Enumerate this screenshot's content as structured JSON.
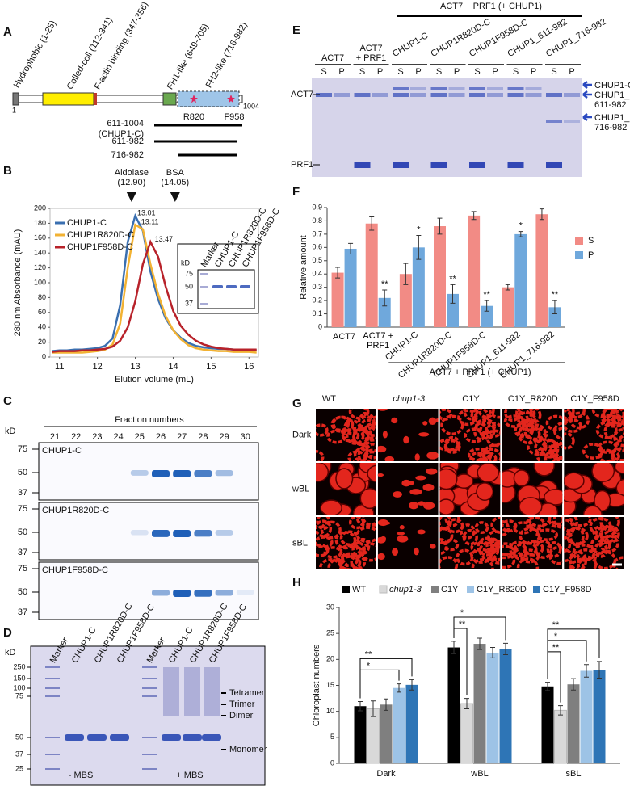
{
  "panel_labels": [
    "A",
    "B",
    "C",
    "D",
    "E",
    "F",
    "G",
    "H"
  ],
  "panel_a": {
    "domains": [
      "Hydrophobic (1-25)",
      "Coiled-coil (112-341)",
      "F-actin binding (347-356)",
      "FH1-like (649-705)",
      "FH2-like (716-982)"
    ],
    "start": "1",
    "end": "1004",
    "mutations": [
      "R820",
      "F958"
    ],
    "constructs": [
      "611-1004",
      "(CHUP1-C)",
      "611-982",
      "716-982"
    ]
  },
  "chart_data": [
    {
      "type": "line",
      "xlabel": "Elution volume (mL)",
      "ylabel": "280 nm Absorbance (mAU)",
      "x": [
        10.8,
        11.0,
        11.2,
        11.4,
        11.6,
        11.8,
        12.0,
        12.2,
        12.4,
        12.6,
        12.8,
        13.0,
        13.2,
        13.4,
        13.6,
        13.8,
        14.0,
        14.2,
        14.4,
        14.6,
        14.8,
        15.0,
        15.2,
        15.4,
        15.6,
        15.8,
        16.0,
        16.2
      ],
      "series": [
        {
          "name": "CHUP1-C",
          "color": "#3a6fb0",
          "values": [
            8,
            9,
            9,
            10,
            10,
            11,
            12,
            15,
            25,
            70,
            155,
            190,
            170,
            115,
            78,
            52,
            36,
            26,
            19,
            15,
            13,
            12,
            11,
            11,
            10,
            10,
            10,
            9
          ]
        },
        {
          "name": "CHUP1R820D-C",
          "color": "#f2b233",
          "values": [
            6,
            6,
            6,
            6,
            6,
            7,
            8,
            10,
            17,
            45,
            120,
            178,
            172,
            125,
            85,
            55,
            36,
            24,
            16,
            12,
            10,
            9,
            8,
            8,
            7,
            7,
            7,
            6
          ]
        },
        {
          "name": "CHUP1F958D-C",
          "color": "#b8222a",
          "values": [
            7,
            8,
            8,
            8,
            9,
            9,
            10,
            11,
            14,
            22,
            40,
            75,
            125,
            155,
            135,
            95,
            62,
            42,
            30,
            22,
            17,
            14,
            12,
            11,
            10,
            10,
            10,
            10
          ]
        }
      ],
      "peaks": [
        13.01,
        13.11,
        13.47
      ],
      "standards": [
        {
          "name": "Aldolase",
          "value": 12.9,
          "label": "(12.90)"
        },
        {
          "name": "BSA",
          "value": 14.05,
          "label": "(14.05)"
        }
      ],
      "xlim": [
        10.75,
        16.25
      ],
      "xticks": [
        11,
        12,
        13,
        14,
        15,
        16
      ],
      "ylim": [
        0,
        200
      ],
      "yticks": [
        0,
        20,
        40,
        60,
        80,
        100,
        120,
        140,
        160,
        180,
        200
      ],
      "inset": {
        "unit": "kD",
        "markers": [
          75,
          50,
          37
        ],
        "lanes": [
          "Marker",
          "CHUP1-C",
          "CHUP1R820D-C",
          "CHUP1F958D-C"
        ]
      }
    },
    {
      "type": "bar",
      "ylabel": "Relative amount",
      "categories": [
        "ACT7",
        "ACT7 + PRF1",
        "CHUP1-C",
        "CHUP1R820D-C",
        "CHUP1F958D-C",
        "CHUP1_611-982",
        "CHUP1_716-982"
      ],
      "series": [
        {
          "name": "S",
          "color": "#f28b85",
          "values": [
            0.41,
            0.78,
            0.4,
            0.76,
            0.84,
            0.3,
            0.85
          ],
          "errors": [
            0.04,
            0.05,
            0.08,
            0.06,
            0.03,
            0.02,
            0.04
          ]
        },
        {
          "name": "P",
          "color": "#6fa8dc",
          "values": [
            0.59,
            0.22,
            0.6,
            0.25,
            0.16,
            0.7,
            0.15
          ],
          "errors": [
            0.04,
            0.06,
            0.09,
            0.07,
            0.04,
            0.02,
            0.05
          ],
          "annotations": [
            null,
            "**",
            "*",
            "**",
            "**",
            "*",
            "**"
          ]
        }
      ],
      "ylim": [
        0,
        0.9
      ],
      "yticks": [
        0,
        0.1,
        0.2,
        0.3,
        0.4,
        0.5,
        0.6,
        0.7,
        0.8,
        0.9
      ],
      "bracket": "ACT7 + PRF1 (+ CHUP1)",
      "legend": "right"
    },
    {
      "type": "bar",
      "ylabel": "Chloroplast numbers",
      "categories": [
        "Dark",
        "wBL",
        "sBL"
      ],
      "series": [
        {
          "name": "WT",
          "color": "#000000",
          "values": [
            11,
            22.3,
            14.8
          ],
          "errors": [
            0.9,
            1.2,
            0.8
          ]
        },
        {
          "name": "chup1-3",
          "color": "#d9d9d9",
          "values": [
            10.5,
            11.5,
            10.2
          ],
          "errors": [
            1.5,
            1.0,
            0.9
          ]
        },
        {
          "name": "C1Y",
          "color": "#7f7f7f",
          "values": [
            11.3,
            23,
            15.2
          ],
          "errors": [
            1.1,
            1.1,
            1.1
          ]
        },
        {
          "name": "C1Y_R820D",
          "color": "#9dc3e6",
          "values": [
            14.5,
            21.3,
            17.8
          ],
          "errors": [
            0.8,
            1.0,
            1.2
          ]
        },
        {
          "name": "C1Y_F958D",
          "color": "#2e75b6",
          "values": [
            15.1,
            22,
            18
          ],
          "errors": [
            1.0,
            1.1,
            1.6
          ]
        }
      ],
      "ylim": [
        0,
        30
      ],
      "yticks": [
        0,
        5,
        10,
        15,
        20,
        25,
        30
      ],
      "significance": [
        "*",
        "**",
        "**",
        "*",
        "**",
        "*",
        "**"
      ],
      "legend": "top"
    }
  ],
  "panel_c": {
    "title": "Fraction numbers",
    "unit": "kD",
    "fractions": [
      21,
      22,
      23,
      24,
      25,
      26,
      27,
      28,
      29,
      30
    ],
    "markers": [
      75,
      50,
      37
    ],
    "gels": [
      "CHUP1-C",
      "CHUP1R820D-C",
      "CHUP1F958D-C"
    ]
  },
  "panel_d": {
    "unit": "kD",
    "markers": [
      250,
      150,
      100,
      75,
      50,
      37,
      25
    ],
    "lanes": [
      "Marker",
      "CHUP1-C",
      "CHUP1R820D-C",
      "CHUP1F958D-C"
    ],
    "conditions": [
      "- MBS",
      "+ MBS"
    ],
    "species": [
      "Tetramer",
      "Trimer",
      "Dimer",
      "Monomer"
    ]
  },
  "panel_e": {
    "header": "ACT7 + PRF1 (+ CHUP1)",
    "groups": [
      [
        "ACT7"
      ],
      [
        "ACT7",
        "+ PRF1"
      ],
      [
        "CHUP1-C"
      ],
      [
        "CHUP1R820D-C"
      ],
      [
        "CHUP1F958D-C"
      ],
      [
        "CHUP1_611-982"
      ],
      [
        "CHUP1_716-982"
      ]
    ],
    "fractions": [
      "S",
      "P"
    ],
    "left_labels": [
      "ACT7",
      "PRF1"
    ],
    "right_labels": [
      [
        "CHUP1-C"
      ],
      [
        "CHUP1_",
        "611-982"
      ],
      [
        "CHUP1_",
        "716-982"
      ]
    ]
  },
  "panel_g": {
    "columns": [
      "WT",
      "chup1-3",
      "C1Y",
      "C1Y_R820D",
      "C1Y_F958D"
    ],
    "rows": [
      "Dark",
      "wBL",
      "sBL"
    ]
  }
}
